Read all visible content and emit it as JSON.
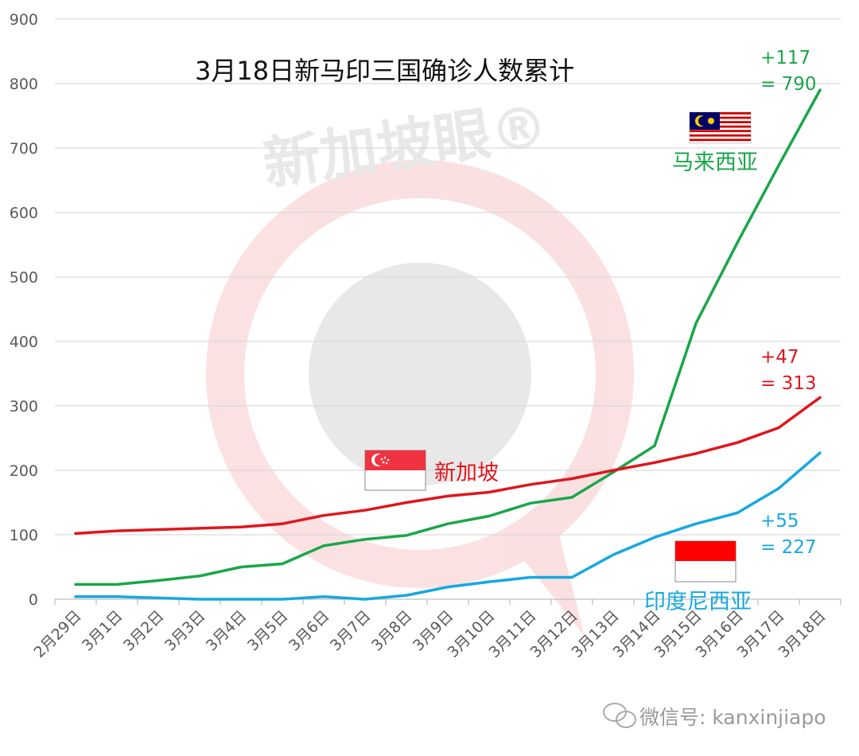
{
  "chart_data": {
    "type": "line",
    "title": "3月18日新马印三国确诊人数累计",
    "xlabel": "",
    "ylabel": "",
    "ylim": [
      0,
      900
    ],
    "yticks": [
      0,
      100,
      200,
      300,
      400,
      500,
      600,
      700,
      800,
      900
    ],
    "grid": true,
    "categories": [
      "2月29日",
      "3月1日",
      "3月2日",
      "3月3日",
      "3月4日",
      "3月5日",
      "3月6日",
      "3月7日",
      "3月8日",
      "3月9日",
      "3月10日",
      "3月11日",
      "3月12日",
      "3月13日",
      "3月14日",
      "3月15日",
      "3月16日",
      "3月17日",
      "3月18日"
    ],
    "series": [
      {
        "name": "新加坡",
        "color": "#e0161d",
        "values": [
          102,
          106,
          108,
          110,
          112,
          117,
          130,
          138,
          150,
          160,
          166,
          178,
          187,
          200,
          212,
          226,
          243,
          266,
          313
        ],
        "annotation": {
          "delta": "+47",
          "total": "= 313"
        }
      },
      {
        "name": "马来西亚",
        "color": "#1aa64a",
        "values": [
          23,
          23,
          29,
          36,
          50,
          55,
          83,
          93,
          99,
          117,
          129,
          149,
          158,
          197,
          238,
          428,
          553,
          673,
          790
        ],
        "annotation": {
          "delta": "+117",
          "total": "= 790"
        }
      },
      {
        "name": "印度尼西亚",
        "color": "#17a8e0",
        "values": [
          4,
          4,
          2,
          0,
          0,
          0,
          4,
          0,
          6,
          19,
          27,
          34,
          34,
          69,
          96,
          117,
          134,
          172,
          227
        ],
        "annotation": {
          "delta": "+55",
          "total": "= 227"
        }
      }
    ]
  },
  "watermark": "新加坡眼®",
  "footer": "微信号: kanxinjiapo"
}
